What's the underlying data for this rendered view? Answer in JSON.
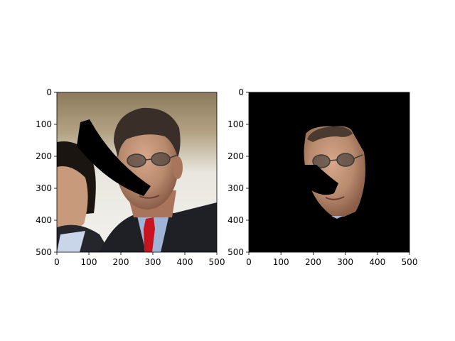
{
  "figure": {
    "background": "#ffffff"
  },
  "chart_data": [
    {
      "type": "image",
      "title": "",
      "xlabel": "",
      "ylabel": "",
      "xlim": [
        0,
        500
      ],
      "ylim": [
        500,
        0
      ],
      "xticks": [
        "0",
        "100",
        "200",
        "300",
        "400",
        "500"
      ],
      "yticks": [
        "0",
        "100",
        "200",
        "300",
        "400",
        "500"
      ],
      "content": "photo of a man in a dark suit with a red tie, partly occluded by a black curved band",
      "colors": {
        "tie": "#c8141e",
        "suit": "#1e2026",
        "occluder": "#000000",
        "background_top": "#a08c6e"
      }
    },
    {
      "type": "image",
      "title": "",
      "xlabel": "",
      "ylabel": "",
      "xlim": [
        0,
        500
      ],
      "ylim": [
        500,
        0
      ],
      "xticks": [
        "0",
        "100",
        "200",
        "300",
        "400",
        "500"
      ],
      "yticks": [
        "0",
        "100",
        "200",
        "300",
        "400",
        "500"
      ],
      "content": "segmented face region on black background with a black occluded patch",
      "colors": {
        "background": "#000000",
        "skin": "#b88a6e"
      }
    }
  ]
}
